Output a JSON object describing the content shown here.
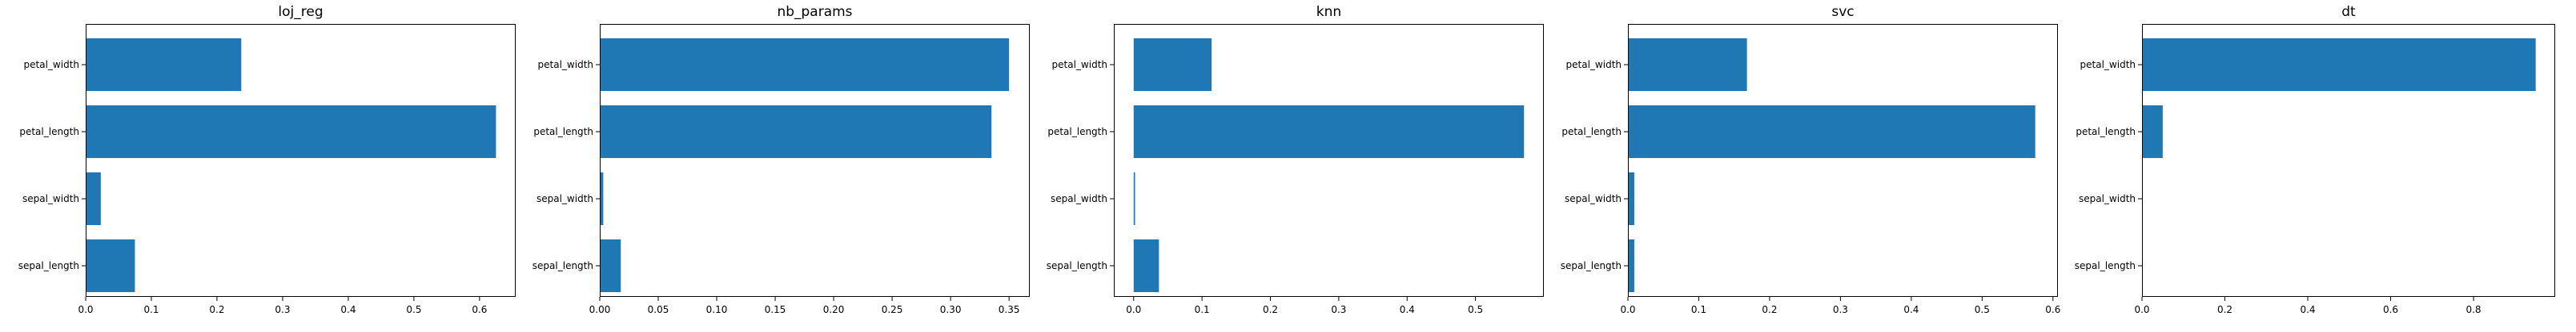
{
  "chart_data": [
    {
      "type": "bar",
      "orientation": "horizontal",
      "title": "loj_reg",
      "categories": [
        "sepal_length",
        "sepal_width",
        "petal_length",
        "petal_width"
      ],
      "values": [
        0.075,
        0.023,
        0.625,
        0.237
      ],
      "xlim": [
        0,
        0.655
      ],
      "xticks": [
        0.0,
        0.1,
        0.2,
        0.3,
        0.4,
        0.5,
        0.6
      ],
      "xtick_labels": [
        "0.0",
        "0.1",
        "0.2",
        "0.3",
        "0.4",
        "0.5",
        "0.6"
      ],
      "xlabel": "",
      "ylabel": "",
      "color": "#1f77b4",
      "grid": false
    },
    {
      "type": "bar",
      "orientation": "horizontal",
      "title": "nb_params",
      "categories": [
        "sepal_length",
        "sepal_width",
        "petal_length",
        "petal_width"
      ],
      "values": [
        0.018,
        0.003,
        0.335,
        0.35
      ],
      "xlim": [
        0,
        0.3677
      ],
      "xticks": [
        0.0,
        0.05,
        0.1,
        0.15,
        0.2,
        0.25,
        0.3,
        0.35
      ],
      "xtick_labels": [
        "0.00",
        "0.05",
        "0.10",
        "0.15",
        "0.20",
        "0.25",
        "0.30",
        "0.35"
      ],
      "xlabel": "",
      "ylabel": "",
      "color": "#1f77b4",
      "grid": false
    },
    {
      "type": "bar",
      "orientation": "horizontal",
      "title": "knn",
      "categories": [
        "sepal_length",
        "sepal_width",
        "petal_length",
        "petal_width"
      ],
      "values": [
        0.037,
        0.002,
        0.571,
        0.114
      ],
      "xlim": [
        -0.029,
        0.6
      ],
      "xticks": [
        0.0,
        0.1,
        0.2,
        0.3,
        0.4,
        0.5
      ],
      "xtick_labels": [
        "0.0",
        "0.1",
        "0.2",
        "0.3",
        "0.4",
        "0.5"
      ],
      "xlabel": "",
      "ylabel": "",
      "color": "#1f77b4",
      "grid": false
    },
    {
      "type": "bar",
      "orientation": "horizontal",
      "title": "svc",
      "categories": [
        "sepal_length",
        "sepal_width",
        "petal_length",
        "petal_width"
      ],
      "values": [
        0.009,
        0.009,
        0.575,
        0.168
      ],
      "xlim": [
        0,
        0.607
      ],
      "xticks": [
        0.0,
        0.1,
        0.2,
        0.3,
        0.4,
        0.5,
        0.6
      ],
      "xtick_labels": [
        "0.0",
        "0.1",
        "0.2",
        "0.3",
        "0.4",
        "0.5",
        "0.6"
      ],
      "xlabel": "",
      "ylabel": "",
      "color": "#1f77b4",
      "grid": false
    },
    {
      "type": "bar",
      "orientation": "horizontal",
      "title": "dt",
      "categories": [
        "sepal_length",
        "sepal_width",
        "petal_length",
        "petal_width"
      ],
      "values": [
        0.0,
        0.0,
        0.05,
        0.95
      ],
      "xlim": [
        0,
        0.997
      ],
      "xticks": [
        0.0,
        0.2,
        0.4,
        0.6,
        0.8
      ],
      "xtick_labels": [
        "0.0",
        "0.2",
        "0.4",
        "0.6",
        "0.8"
      ],
      "xlabel": "",
      "ylabel": "",
      "color": "#1f77b4",
      "grid": false
    }
  ]
}
